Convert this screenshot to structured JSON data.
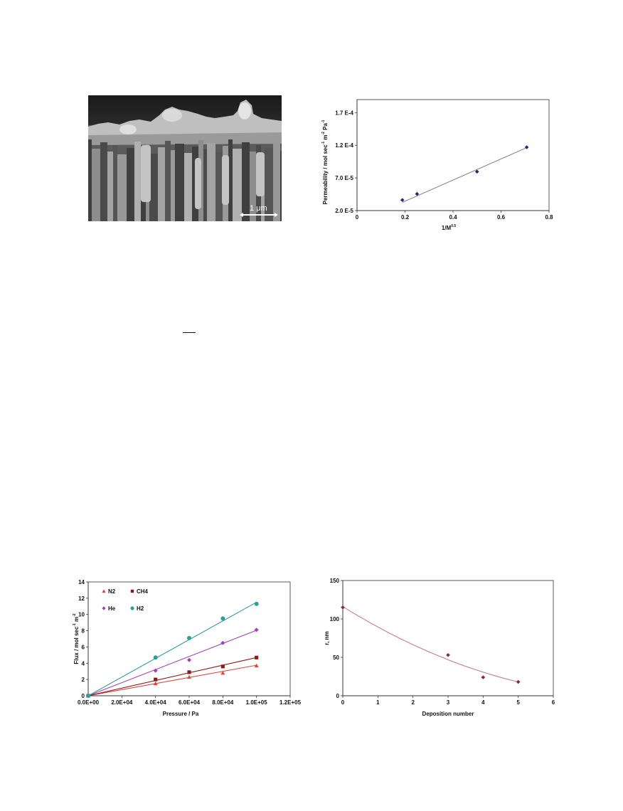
{
  "sem_image": {
    "scale_bar_label": "1  μm"
  },
  "chart_data": [
    {
      "type": "scatter",
      "title": "",
      "xlabel": "1/M",
      "xlabel_sup": "0.5",
      "ylabel": "Permeability  /  mol sec",
      "ylabel_sup1": "-1",
      "ylabel_mid": " m",
      "ylabel_sup2": "-2",
      "ylabel_end": " Pa",
      "ylabel_sup3": "-1",
      "xlim": [
        0,
        0.8
      ],
      "ylim": [
        2e-05,
        0.00019
      ],
      "xticks": [
        0,
        0.2,
        0.4,
        0.6,
        0.8
      ],
      "xtick_labels": [
        "0",
        "0.2",
        "0.4",
        "0.6",
        "0.8"
      ],
      "yticks": [
        2e-05,
        7e-05,
        0.00012,
        0.00017
      ],
      "ytick_labels": [
        "2.0 E-5",
        "7.0 E-5",
        "1.2 E-4",
        "1.7 E-4"
      ],
      "grid": false,
      "series": [
        {
          "marker": "diamond",
          "color": "#1f2a7a",
          "points": [
            [
              0.189,
              3.62e-05
            ],
            [
              0.25,
              4.55e-05
            ],
            [
              0.5,
              7.96e-05
            ],
            [
              0.707,
              0.000117
            ]
          ]
        }
      ],
      "trendline": {
        "color": "#8a8a8a",
        "x": [
          0.189,
          0.707
        ],
        "y": [
          3.25e-05,
          0.0001165
        ]
      }
    },
    {
      "type": "scatter",
      "title": "",
      "xlabel": "Pressure  /  Pa",
      "ylabel": "Flux  /  mol sec",
      "ylabel_sup1": "-1",
      "ylabel_mid": " m",
      "ylabel_sup2": "-2",
      "xlim": [
        0,
        120000
      ],
      "ylim": [
        0,
        14
      ],
      "xticks": [
        0,
        20000,
        40000,
        60000,
        80000,
        100000,
        120000
      ],
      "xtick_labels": [
        "0.0E+00",
        "2.0E+04",
        "4.0E+04",
        "6.0E+04",
        "8.0E+04",
        "1.0E+05",
        "1.2E+05"
      ],
      "yticks": [
        0,
        2,
        4,
        6,
        8,
        10,
        12,
        14
      ],
      "ytick_labels": [
        "0",
        "2",
        "4",
        "6",
        "8",
        "10",
        "12",
        "14"
      ],
      "grid": false,
      "legend_position": "top-left",
      "series": [
        {
          "name": "N2",
          "marker": "triangle",
          "color": "#e8413c",
          "x": [
            0,
            40000,
            60000,
            80000,
            100000
          ],
          "y": [
            0,
            1.5,
            2.3,
            2.8,
            3.7
          ],
          "fit": [
            0,
            3.75
          ]
        },
        {
          "name": "CH4",
          "marker": "square",
          "color": "#8b1a1a",
          "x": [
            0,
            40000,
            60000,
            80000,
            100000
          ],
          "y": [
            0,
            2.0,
            2.9,
            3.6,
            4.7
          ],
          "fit": [
            0,
            4.7
          ]
        },
        {
          "name": "He",
          "marker": "diamond",
          "color": "#a43cc0",
          "x": [
            0,
            40000,
            60000,
            80000,
            100000
          ],
          "y": [
            0,
            3.1,
            4.4,
            6.5,
            8.1
          ],
          "fit": [
            0,
            8.05
          ]
        },
        {
          "name": "H2",
          "marker": "circle",
          "color": "#2aa198",
          "x": [
            0,
            40000,
            60000,
            80000,
            100000
          ],
          "y": [
            0,
            4.7,
            7.1,
            9.5,
            11.3
          ],
          "fit": [
            0,
            11.5
          ]
        }
      ]
    },
    {
      "type": "scatter",
      "title": "",
      "xlabel": "Deposition number",
      "ylabel": "r, nm",
      "xlim": [
        0,
        6
      ],
      "ylim": [
        0,
        150
      ],
      "xticks": [
        0,
        1,
        2,
        3,
        4,
        5,
        6
      ],
      "xtick_labels": [
        "0",
        "1",
        "2",
        "3",
        "4",
        "5",
        "6"
      ],
      "yticks": [
        0,
        50,
        100,
        150
      ],
      "ytick_labels": [
        "0",
        "50",
        "100",
        "150"
      ],
      "grid": false,
      "series": [
        {
          "marker": "diamond",
          "color": "#8b2252",
          "points": [
            [
              0,
              115
            ],
            [
              3,
              53
            ],
            [
              4,
              24
            ],
            [
              5,
              18
            ]
          ]
        }
      ],
      "trendline": {
        "color": "#c97b8f",
        "type": "polynomial",
        "coefficients": [
          116,
          -28.2,
          1.72
        ]
      }
    }
  ]
}
